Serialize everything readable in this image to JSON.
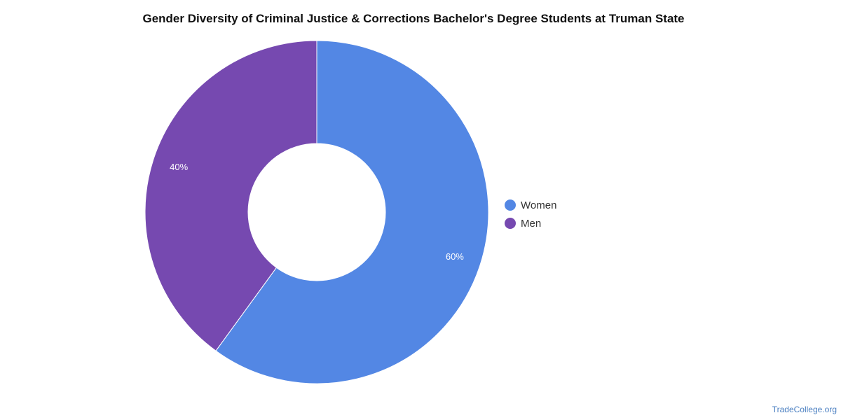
{
  "chart_data": {
    "type": "pie",
    "title": "Gender Diversity of Criminal Justice & Corrections Bachelor's Degree Students at Truman State",
    "categories": [
      "Women",
      "Men"
    ],
    "values": [
      60,
      40
    ],
    "value_labels": [
      "60%",
      "40%"
    ],
    "colors": [
      "#5387e4",
      "#7649b0"
    ],
    "donut": true,
    "legend_position": "right"
  },
  "source": "TradeCollege.org"
}
